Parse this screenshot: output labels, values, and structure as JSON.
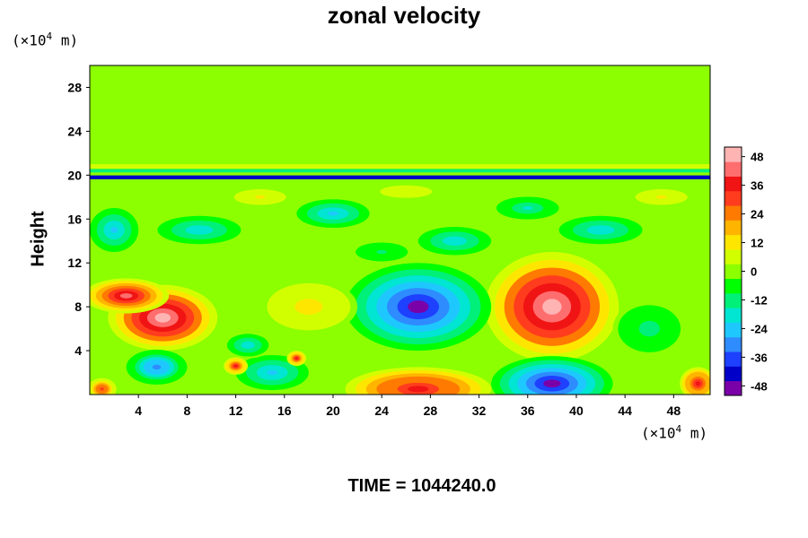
{
  "chart_data": {
    "type": "heatmap",
    "title": "zonal velocity",
    "ylabel": "Height",
    "y_unit": "(×10⁴ m)",
    "x_unit": "(×10⁴ m)",
    "unit_base": "×10",
    "unit_exp": "4",
    "unit_suffix": "m",
    "footer": "TIME = 1044240.0",
    "xlim": [
      0,
      51
    ],
    "ylim": [
      0,
      30
    ],
    "x_ticks": [
      4,
      8,
      12,
      16,
      20,
      24,
      28,
      32,
      36,
      40,
      44,
      48
    ],
    "y_ticks": [
      4,
      8,
      12,
      16,
      20,
      24,
      28
    ],
    "colorbar": {
      "ticks": [
        48,
        36,
        24,
        12,
        0,
        -12,
        -24,
        -36,
        -48
      ],
      "range": [
        -52,
        52
      ],
      "colors": [
        "#7a00a8",
        "#0000c8",
        "#1e40ff",
        "#2e8cff",
        "#1ec8ff",
        "#00e6d2",
        "#00f07a",
        "#00ff00",
        "#8cff00",
        "#d2ff00",
        "#ffe600",
        "#ffb400",
        "#ff7a00",
        "#ff3c1e",
        "#f01414",
        "#ff6e6e",
        "#ffb4b4"
      ]
    },
    "features": [
      {
        "kind": "jet",
        "x": 6,
        "y": 7,
        "rx": 4.5,
        "ry": 3,
        "value": 52
      },
      {
        "kind": "jet",
        "x": 3,
        "y": 9,
        "rx": 3.5,
        "ry": 1.6,
        "value": 40
      },
      {
        "kind": "jet",
        "x": 38,
        "y": 8,
        "rx": 5.5,
        "ry": 5,
        "value": 50
      },
      {
        "kind": "jet",
        "x": 27,
        "y": 8,
        "rx": 6,
        "ry": 4,
        "value": -46
      },
      {
        "kind": "jet",
        "x": 38,
        "y": 1,
        "rx": 5,
        "ry": 2.5,
        "value": -46
      },
      {
        "kind": "jet",
        "x": 27,
        "y": 0.5,
        "rx": 6,
        "ry": 2,
        "value": 38
      },
      {
        "kind": "jet",
        "x": 50,
        "y": 1,
        "rx": 1.5,
        "ry": 1.5,
        "value": 36
      },
      {
        "kind": "jet",
        "x": 5.5,
        "y": 2.5,
        "rx": 2.5,
        "ry": 1.6,
        "value": -32
      },
      {
        "kind": "jet",
        "x": 15,
        "y": 2,
        "rx": 3,
        "ry": 1.6,
        "value": -24
      },
      {
        "kind": "jet",
        "x": 13,
        "y": 4.5,
        "rx": 2,
        "ry": 1.2,
        "value": -20
      },
      {
        "kind": "jet",
        "x": 18,
        "y": 8,
        "rx": 4,
        "ry": 2.5,
        "value": 12
      },
      {
        "kind": "jet",
        "x": 46,
        "y": 6,
        "rx": 3,
        "ry": 2.5,
        "value": -12
      },
      {
        "kind": "jet",
        "x": 12,
        "y": 2.6,
        "rx": 1,
        "ry": 0.8,
        "value": 34
      },
      {
        "kind": "jet",
        "x": 17,
        "y": 3.3,
        "rx": 0.8,
        "ry": 0.7,
        "value": 34
      },
      {
        "kind": "jet",
        "x": 1,
        "y": 0.5,
        "rx": 1.2,
        "ry": 1,
        "value": 30
      },
      {
        "kind": "jet",
        "x": 9,
        "y": 15,
        "rx": 4,
        "ry": 1.5,
        "value": -20
      },
      {
        "kind": "jet",
        "x": 20,
        "y": 16.5,
        "rx": 3,
        "ry": 1.3,
        "value": -22
      },
      {
        "kind": "jet",
        "x": 30,
        "y": 14,
        "rx": 3.5,
        "ry": 1.5,
        "value": -18
      },
      {
        "kind": "jet",
        "x": 42,
        "y": 15,
        "rx": 4,
        "ry": 1.5,
        "value": -20
      },
      {
        "kind": "jet",
        "x": 2,
        "y": 15,
        "rx": 2,
        "ry": 2,
        "value": -24
      },
      {
        "kind": "jet",
        "x": 24,
        "y": 13,
        "rx": 3,
        "ry": 1.2,
        "value": -10
      },
      {
        "kind": "jet",
        "x": 36,
        "y": 17,
        "rx": 3,
        "ry": 1.2,
        "value": -16
      },
      {
        "kind": "jet",
        "x": 47,
        "y": 18,
        "rx": 3,
        "ry": 1,
        "value": 10
      },
      {
        "kind": "jet",
        "x": 14,
        "y": 18,
        "rx": 3,
        "ry": 1,
        "value": 10
      },
      {
        "kind": "jet",
        "x": 26,
        "y": 18.5,
        "rx": 3,
        "ry": 0.8,
        "value": 8
      }
    ],
    "bands": [
      {
        "y": 19.8,
        "thickness": 0.35,
        "value": -44
      },
      {
        "y": 20.4,
        "thickness": 0.3,
        "value": -14
      }
    ]
  }
}
